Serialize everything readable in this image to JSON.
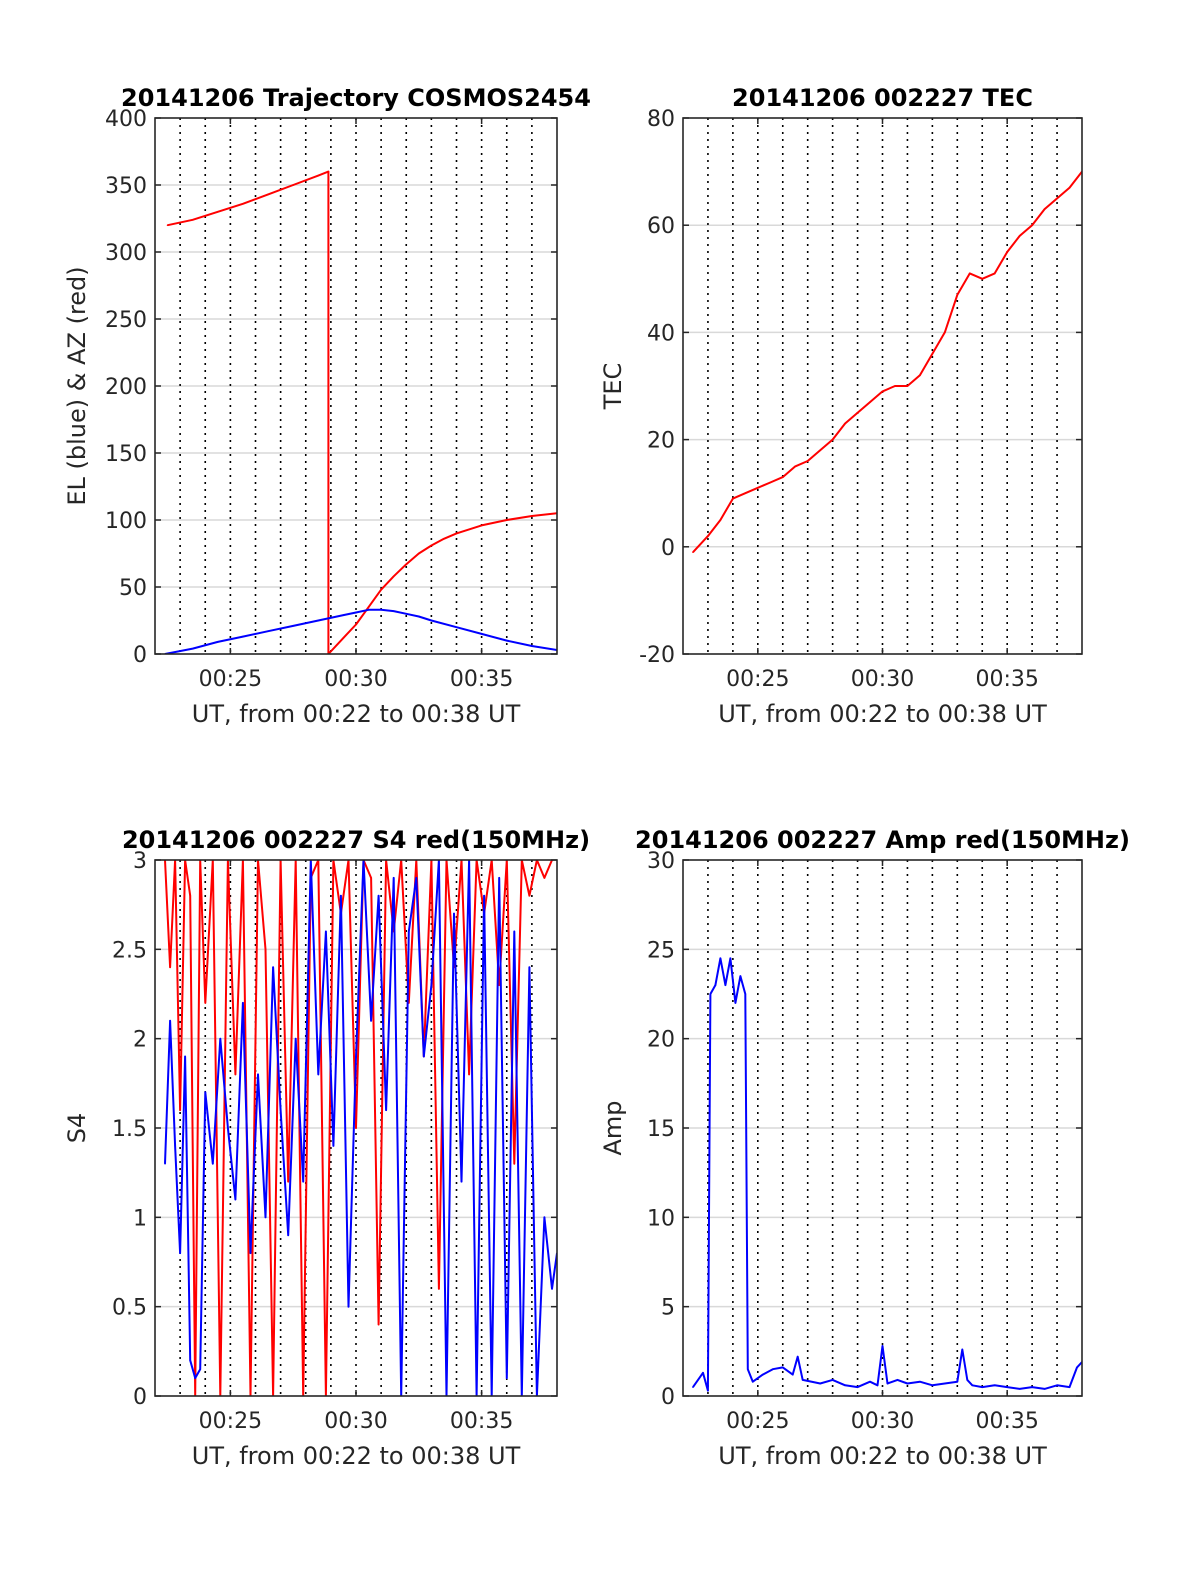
{
  "figure": {
    "panels": [
      {
        "id": "trajectory",
        "title": "20141206 Trajectory COSMOS2454",
        "ylabel": "EL (blue) & AZ (red)",
        "xlabel": "UT, from 00:22 to 00:38 UT"
      },
      {
        "id": "tec",
        "title": "20141206 002227 TEC",
        "ylabel": "TEC",
        "xlabel": "UT, from 00:22 to 00:38 UT"
      },
      {
        "id": "s4",
        "title": "20141206 002227 S4 red(150MHz)",
        "ylabel": "S4",
        "xlabel": "UT, from 00:22 to 00:38 UT"
      },
      {
        "id": "amp",
        "title": "20141206 002227 Amp red(150MHz)",
        "ylabel": "Amp",
        "xlabel": "UT, from 00:22 to 00:38 UT"
      }
    ]
  },
  "chart_data": [
    {
      "type": "line",
      "title": "20141206 Trajectory COSMOS2454",
      "xlabel": "UT, from 00:22 to 00:38 UT",
      "ylabel": "EL (blue) & AZ (red)",
      "xlim": [
        "00:22",
        "00:38"
      ],
      "ylim": [
        0,
        400
      ],
      "x_ticks": [
        "00:25",
        "00:30",
        "00:35"
      ],
      "y_ticks": [
        0,
        50,
        100,
        150,
        200,
        250,
        300,
        350,
        400
      ],
      "vertical_dotted_lines_min": [
        23,
        24,
        25,
        26,
        27,
        28,
        29,
        30,
        31,
        32,
        33,
        34,
        35,
        36,
        37
      ],
      "grid": "horizontal",
      "series": [
        {
          "color": "#ff0000",
          "x_min": [
            22.5,
            23.5,
            24.5,
            25.5,
            26.5,
            27.5,
            28.5,
            28.9,
            28.9,
            29.5,
            30.0,
            30.5,
            31.0,
            31.5,
            32.0,
            32.5,
            33.0,
            33.5,
            34.0,
            35.0,
            36.0,
            37.0,
            38.0
          ],
          "values": [
            320,
            324,
            330,
            336,
            343,
            350,
            357,
            360,
            0,
            12,
            22,
            35,
            48,
            58,
            67,
            75,
            81,
            86,
            90,
            96,
            100,
            103,
            105
          ]
        },
        {
          "color": "#0000ff",
          "x_min": [
            22.4,
            23.5,
            24.5,
            25.5,
            26.5,
            27.5,
            28.5,
            29.5,
            30.0,
            30.5,
            31.0,
            31.5,
            32.0,
            32.5,
            33.0,
            34.0,
            35.0,
            36.0,
            37.0,
            38.0
          ],
          "values": [
            0,
            4,
            9,
            13,
            17,
            21,
            25,
            29,
            31,
            33,
            33,
            32,
            30,
            28,
            25,
            20,
            15,
            10,
            6,
            3
          ]
        }
      ]
    },
    {
      "type": "line",
      "title": "20141206 002227 TEC",
      "xlabel": "UT, from 00:22 to 00:38 UT",
      "ylabel": "TEC",
      "xlim": [
        "00:22",
        "00:38"
      ],
      "ylim": [
        -20,
        80
      ],
      "x_ticks": [
        "00:25",
        "00:30",
        "00:35"
      ],
      "y_ticks": [
        -20,
        0,
        20,
        40,
        60,
        80
      ],
      "vertical_dotted_lines_min": [
        23,
        24,
        25,
        26,
        27,
        28,
        29,
        30,
        31,
        32,
        33,
        34,
        35,
        36,
        37
      ],
      "grid": "horizontal",
      "series": [
        {
          "color": "#ff0000",
          "x_min": [
            22.4,
            23.0,
            23.5,
            24.0,
            24.5,
            25.0,
            25.5,
            26.0,
            26.5,
            27.0,
            27.5,
            28.0,
            28.5,
            29.0,
            29.5,
            30.0,
            30.5,
            31.0,
            31.5,
            32.0,
            32.5,
            33.0,
            33.5,
            34.0,
            34.5,
            35.0,
            35.5,
            36.0,
            36.5,
            37.0,
            37.5,
            38.0
          ],
          "values": [
            -1,
            2,
            5,
            9,
            10,
            11,
            12,
            13,
            15,
            16,
            18,
            20,
            23,
            25,
            27,
            29,
            30,
            30,
            32,
            36,
            40,
            47,
            51,
            50,
            51,
            55,
            58,
            60,
            63,
            65,
            67,
            70
          ]
        }
      ]
    },
    {
      "type": "line",
      "title": "20141206 002227 S4 red(150MHz)",
      "xlabel": "UT, from 00:22 to 00:38 UT",
      "ylabel": "S4",
      "xlim": [
        "00:22",
        "00:38"
      ],
      "ylim": [
        0,
        3
      ],
      "x_ticks": [
        "00:25",
        "00:30",
        "00:35"
      ],
      "y_ticks": [
        0,
        0.5,
        1,
        1.5,
        2,
        2.5,
        3
      ],
      "vertical_dotted_lines_min": [
        23,
        24,
        25,
        26,
        27,
        28,
        29,
        30,
        31,
        32,
        33,
        34,
        35,
        36,
        37
      ],
      "grid": "horizontal",
      "series": [
        {
          "color": "#ff0000",
          "x_min": [
            22.4,
            22.6,
            22.8,
            23.0,
            23.2,
            23.4,
            23.6,
            23.8,
            24.0,
            24.3,
            24.6,
            24.9,
            25.2,
            25.5,
            25.8,
            26.1,
            26.4,
            26.7,
            27.0,
            27.3,
            27.6,
            27.9,
            28.2,
            28.5,
            28.8,
            29.1,
            29.4,
            29.7,
            30.0,
            30.3,
            30.6,
            30.9,
            31.2,
            31.5,
            31.8,
            32.1,
            32.4,
            32.7,
            33.0,
            33.3,
            33.6,
            33.9,
            34.2,
            34.5,
            34.8,
            35.1,
            35.4,
            35.7,
            36.0,
            36.3,
            36.6,
            36.9,
            37.2,
            37.5,
            37.8
          ],
          "values": [
            3,
            2.4,
            3,
            1.6,
            3,
            2.8,
            0,
            3,
            2.2,
            3,
            0,
            3,
            1.8,
            3,
            0,
            3,
            2.5,
            0,
            3,
            1.2,
            3,
            0,
            2.9,
            3,
            0,
            3,
            2.7,
            3,
            1.5,
            3,
            2.9,
            0.4,
            3,
            2.6,
            3,
            2.2,
            3,
            1.9,
            3,
            0.6,
            3,
            2.4,
            3,
            1.8,
            3,
            2.7,
            3,
            2.3,
            3,
            1.3,
            3,
            2.8,
            3,
            2.9,
            3
          ]
        },
        {
          "color": "#0000ff",
          "x_min": [
            22.4,
            22.6,
            22.8,
            23.0,
            23.2,
            23.4,
            23.6,
            23.8,
            24.0,
            24.3,
            24.6,
            24.9,
            25.2,
            25.5,
            25.8,
            26.1,
            26.4,
            26.7,
            27.0,
            27.3,
            27.6,
            27.9,
            28.2,
            28.5,
            28.8,
            29.1,
            29.4,
            29.7,
            30.0,
            30.3,
            30.6,
            30.9,
            31.2,
            31.5,
            31.8,
            32.1,
            32.4,
            32.7,
            33.0,
            33.3,
            33.6,
            33.9,
            34.2,
            34.5,
            34.8,
            35.1,
            35.4,
            35.7,
            36.0,
            36.3,
            36.6,
            36.9,
            37.2,
            37.5,
            37.8,
            38.0
          ],
          "values": [
            1.3,
            2.1,
            1.4,
            0.8,
            1.9,
            0.2,
            0.1,
            0.15,
            1.7,
            1.3,
            2.0,
            1.5,
            1.1,
            2.2,
            0.8,
            1.8,
            1.0,
            2.4,
            1.6,
            0.9,
            2.0,
            1.2,
            3.0,
            1.8,
            2.6,
            1.4,
            2.8,
            0.5,
            1.9,
            3.0,
            2.1,
            2.8,
            1.6,
            2.9,
            0.0,
            2.6,
            2.9,
            1.9,
            2.3,
            3.0,
            0.0,
            2.7,
            1.2,
            3.0,
            0.0,
            2.8,
            0.0,
            2.9,
            0.1,
            2.6,
            0.0,
            2.4,
            0.0,
            1.0,
            0.6,
            0.8
          ]
        }
      ]
    },
    {
      "type": "line",
      "title": "20141206 002227 Amp red(150MHz)",
      "xlabel": "UT, from 00:22 to 00:38 UT",
      "ylabel": "Amp",
      "xlim": [
        "00:22",
        "00:38"
      ],
      "ylim": [
        0,
        30
      ],
      "x_ticks": [
        "00:25",
        "00:30",
        "00:35"
      ],
      "y_ticks": [
        0,
        5,
        10,
        15,
        20,
        25,
        30
      ],
      "vertical_dotted_lines_min": [
        23,
        24,
        25,
        26,
        27,
        28,
        29,
        30,
        31,
        32,
        33,
        34,
        35,
        36,
        37
      ],
      "grid": "horizontal",
      "series": [
        {
          "color": "#0000ff",
          "x_min": [
            22.4,
            22.8,
            23.0,
            23.1,
            23.3,
            23.5,
            23.7,
            23.9,
            24.1,
            24.3,
            24.5,
            24.6,
            24.8,
            25.2,
            25.6,
            26.0,
            26.4,
            26.6,
            26.8,
            27.5,
            28.0,
            28.5,
            29.0,
            29.5,
            29.8,
            30.0,
            30.2,
            30.6,
            31.0,
            31.5,
            32.0,
            32.5,
            33.0,
            33.2,
            33.4,
            33.6,
            34.0,
            34.5,
            35.0,
            35.5,
            36.0,
            36.5,
            37.0,
            37.5,
            37.8,
            38.0
          ],
          "values": [
            0.5,
            1.3,
            0.3,
            22.5,
            23,
            24.5,
            23,
            24.5,
            22,
            23.5,
            22.5,
            1.5,
            0.8,
            1.2,
            1.5,
            1.6,
            1.2,
            2.2,
            0.9,
            0.7,
            0.9,
            0.6,
            0.5,
            0.8,
            0.6,
            2.8,
            0.7,
            0.9,
            0.7,
            0.8,
            0.6,
            0.7,
            0.8,
            2.6,
            0.9,
            0.6,
            0.5,
            0.6,
            0.5,
            0.4,
            0.5,
            0.4,
            0.6,
            0.5,
            1.6,
            1.9
          ]
        }
      ]
    }
  ]
}
